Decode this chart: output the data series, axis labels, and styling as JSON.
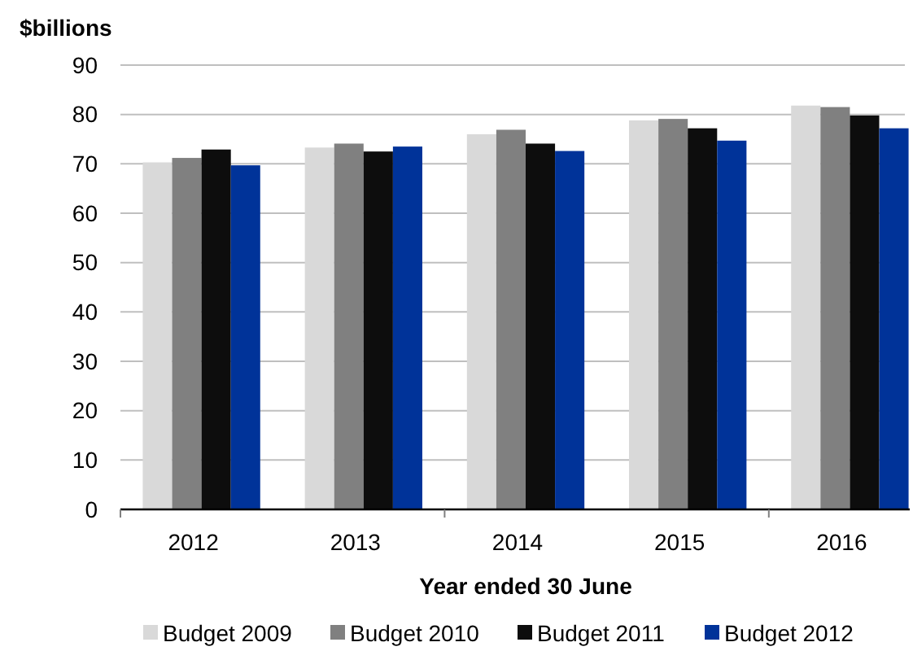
{
  "chart_data": {
    "type": "bar",
    "ylabel": "$billions",
    "xlabel": "Year ended 30 June",
    "categories": [
      "2012",
      "2013",
      "2014",
      "2015",
      "2016"
    ],
    "series": [
      {
        "name": "Budget 2009",
        "color": "#d9d9d9",
        "values": [
          70.3,
          73.3,
          76.0,
          78.8,
          81.8
        ]
      },
      {
        "name": "Budget 2010",
        "color": "#808080",
        "values": [
          71.2,
          74.1,
          76.9,
          79.1,
          81.5
        ]
      },
      {
        "name": "Budget 2011",
        "color": "#0d0d0d",
        "values": [
          72.9,
          72.5,
          74.1,
          77.2,
          79.8
        ]
      },
      {
        "name": "Budget 2012",
        "color": "#003399",
        "values": [
          69.7,
          73.5,
          72.6,
          74.7,
          77.2
        ]
      }
    ],
    "ylim": [
      0,
      90
    ],
    "yticks": [
      0,
      10,
      20,
      30,
      40,
      50,
      60,
      70,
      80,
      90
    ],
    "grid": "y",
    "legend": "bottom"
  }
}
